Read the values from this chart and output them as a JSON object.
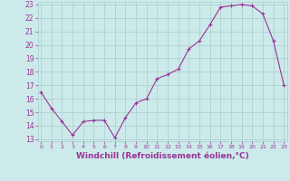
{
  "x": [
    0,
    1,
    2,
    3,
    4,
    5,
    6,
    7,
    8,
    9,
    10,
    11,
    12,
    13,
    14,
    15,
    16,
    17,
    18,
    19,
    20,
    21,
    22,
    23
  ],
  "y": [
    16.5,
    15.3,
    14.3,
    13.3,
    14.3,
    14.4,
    14.4,
    13.1,
    14.6,
    15.7,
    16.0,
    17.5,
    17.8,
    18.2,
    19.7,
    20.3,
    21.5,
    22.8,
    22.9,
    23.0,
    22.9,
    22.3,
    20.3,
    17.0
  ],
  "ylim": [
    13,
    23
  ],
  "xlim": [
    -0.3,
    23.3
  ],
  "yticks": [
    13,
    14,
    15,
    16,
    17,
    18,
    19,
    20,
    21,
    22,
    23
  ],
  "xticks": [
    0,
    1,
    2,
    3,
    4,
    5,
    6,
    7,
    8,
    9,
    10,
    11,
    12,
    13,
    14,
    15,
    16,
    17,
    18,
    19,
    20,
    21,
    22,
    23
  ],
  "xlabel": "Windchill (Refroidissement éolien,°C)",
  "line_color": "#993399",
  "marker": "+",
  "bg_color": "#cceaea",
  "grid_color": "#aacccc",
  "tick_label_color": "#993399",
  "xlabel_color": "#993399",
  "ytick_fontsize": 5.5,
  "xtick_fontsize": 4.5,
  "xlabel_fontsize": 6.5
}
